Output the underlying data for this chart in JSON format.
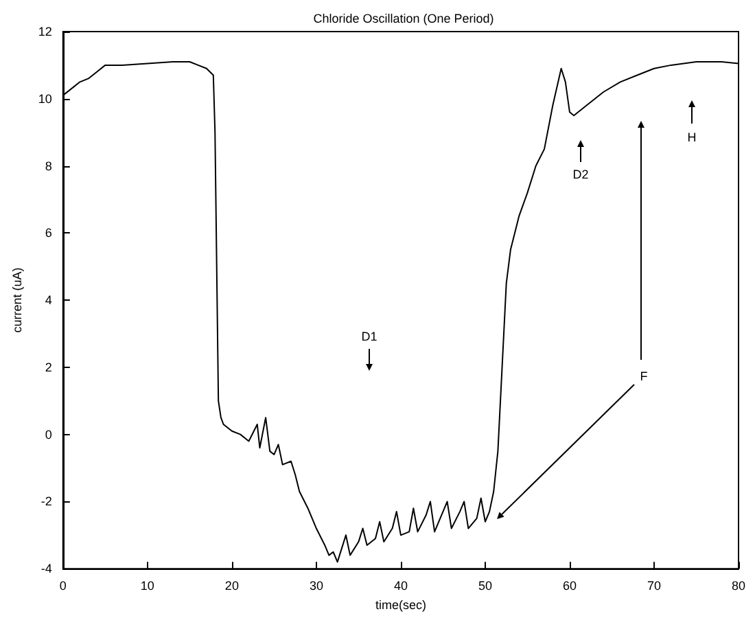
{
  "chart_data": {
    "type": "line",
    "title": "Chloride Oscillation (One Period)",
    "xlabel": "time(sec)",
    "ylabel": "current (uA)",
    "x": [
      0,
      1,
      2,
      3,
      4,
      5,
      7,
      10,
      13,
      15,
      16,
      17,
      17.8,
      18,
      18.2,
      18.4,
      18.7,
      19,
      20,
      21,
      22,
      23,
      23.3,
      24,
      24.5,
      25,
      25.5,
      26,
      27,
      27.5,
      28,
      29,
      30,
      31,
      31.5,
      32,
      32.5,
      33,
      33.5,
      34,
      35,
      35.5,
      36,
      37,
      37.5,
      38,
      39,
      39.5,
      40,
      41,
      41.5,
      42,
      43,
      43.5,
      44,
      45,
      45.5,
      46,
      47,
      47.5,
      48,
      49,
      49.5,
      50,
      50.5,
      51,
      51.5,
      52,
      52.5,
      53,
      54,
      55,
      56,
      57,
      58,
      59,
      59.5,
      60,
      60.5,
      62,
      64,
      66,
      68,
      70,
      72,
      75,
      78,
      80
    ],
    "series": [
      {
        "color": "#000000",
        "values": [
          10.1,
          10.3,
          10.5,
          10.6,
          10.8,
          11.0,
          11.0,
          11.05,
          11.1,
          11.1,
          11.0,
          10.9,
          10.7,
          9,
          5,
          1,
          0.5,
          0.3,
          0.1,
          0.0,
          -0.2,
          0.3,
          -0.4,
          0.5,
          -0.5,
          -0.6,
          -0.3,
          -0.9,
          -0.8,
          -1.2,
          -1.7,
          -2.2,
          -2.8,
          -3.3,
          -3.6,
          -3.5,
          -3.8,
          -3.4,
          -3.0,
          -3.6,
          -3.2,
          -2.8,
          -3.3,
          -3.1,
          -2.6,
          -3.2,
          -2.8,
          -2.3,
          -3.0,
          -2.9,
          -2.2,
          -2.9,
          -2.4,
          -2.0,
          -2.9,
          -2.3,
          -2.0,
          -2.8,
          -2.3,
          -2.0,
          -2.8,
          -2.5,
          -1.9,
          -2.6,
          -2.3,
          -1.7,
          -0.5,
          2,
          4.5,
          5.5,
          6.5,
          7.2,
          8.0,
          8.5,
          9.8,
          10.9,
          10.5,
          9.6,
          9.5,
          9.8,
          10.2,
          10.5,
          10.7,
          10.9,
          11.0,
          11.1,
          11.1,
          11.05
        ]
      }
    ],
    "xlim": [
      0,
      80
    ],
    "xticks": [
      0,
      10,
      20,
      30,
      40,
      50,
      60,
      70,
      80
    ],
    "ylim": [
      -4,
      12
    ],
    "yticks": [
      -4,
      -2,
      0,
      2,
      4,
      6,
      8,
      10,
      12
    ],
    "grid": false,
    "marker": "none",
    "line_style": "solid",
    "annotations": [
      "D1",
      "D2",
      "H",
      "F"
    ]
  }
}
